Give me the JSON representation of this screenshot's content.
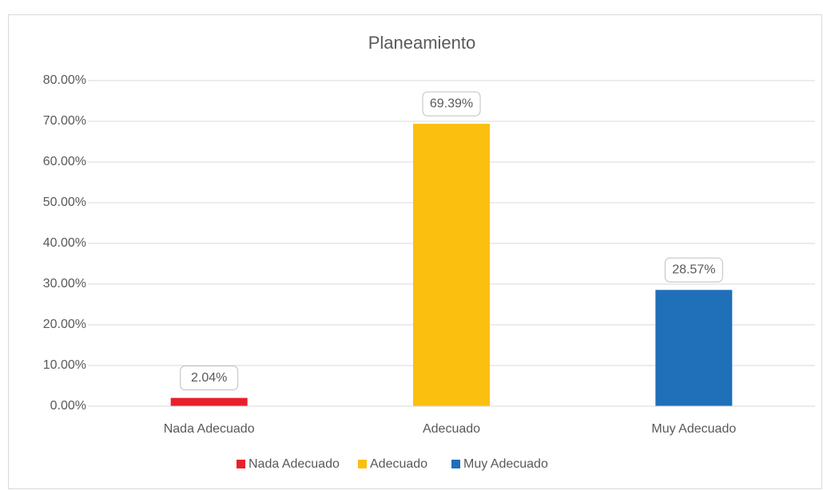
{
  "chart_data": {
    "type": "bar",
    "title": "Planeamiento",
    "categories": [
      "Nada Adecuado",
      "Adecuado",
      "Muy Adecuado"
    ],
    "values": [
      2.04,
      69.39,
      28.57
    ],
    "value_labels": [
      "2.04%",
      "69.39%",
      "28.57%"
    ],
    "colors": [
      "#e8202a",
      "#fbbf10",
      "#1f6fb9"
    ],
    "ylim": [
      0,
      80
    ],
    "yticks": [
      {
        "value": 0,
        "label": "0.00%"
      },
      {
        "value": 10,
        "label": "10.00%"
      },
      {
        "value": 20,
        "label": "20.00%"
      },
      {
        "value": 30,
        "label": "30.00%"
      },
      {
        "value": 40,
        "label": "40.00%"
      },
      {
        "value": 50,
        "label": "50.00%"
      },
      {
        "value": 60,
        "label": "60.00%"
      },
      {
        "value": 70,
        "label": "70.00%"
      },
      {
        "value": 80,
        "label": "80.00%"
      }
    ],
    "grid": true,
    "legend": "bottom"
  }
}
